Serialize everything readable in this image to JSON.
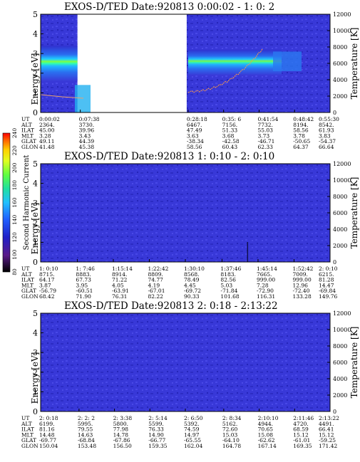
{
  "chart_data": [
    {
      "type": "heatmap",
      "title": "EXOS-D/TED   Date:920813  0:00:02 - 1: 0: 2",
      "ylabel": "Energy [eV]",
      "y2label": "Temperature [K]",
      "ylim": [
        0,
        5
      ],
      "y2lim": [
        0,
        12000
      ],
      "yticks": [
        "0",
        "1",
        "2",
        "3",
        "4",
        "5"
      ],
      "y2ticks": [
        "0",
        "2000",
        "4000",
        "6000",
        "8000",
        "10000",
        "12000"
      ],
      "gap": [
        "0:07:38",
        "0:28:18"
      ],
      "columns": [
        "0:00:02",
        "0:07:38",
        "0:28:18",
        "0:35: 6",
        "0:41:54",
        "0:48:42",
        "0:55:30"
      ],
      "rows": [
        {
          "label": "UT",
          "values": [
            "0:00:02",
            "0:07:38",
            "0:28:18",
            "0:35: 6",
            "0:41:54",
            "0:48:42",
            "0:55:30"
          ]
        },
        {
          "label": "ALT",
          "values": [
            "2364.",
            "3730.",
            "6467.",
            "7156.",
            "7732.",
            "8194.",
            "8542."
          ]
        },
        {
          "label": "ILAT",
          "values": [
            "45.00",
            "39.96",
            "47.49",
            "51.33",
            "55.03",
            "58.56",
            "61.93"
          ]
        },
        {
          "label": "MLT",
          "values": [
            "3.28",
            "3.43",
            "3.63",
            "3.68",
            "3.73",
            "3.78",
            "3.83"
          ]
        },
        {
          "label": "GLAT",
          "values": [
            "49.11",
            "44.39",
            "-38.34",
            "-42.58",
            "-46.71",
            "-50.65",
            "-54.37"
          ]
        },
        {
          "label": "GLON",
          "values": [
            "41.48",
            "45.38",
            "58.56",
            "60.43",
            "62.33",
            "64.37",
            "66.64"
          ]
        }
      ]
    },
    {
      "type": "heatmap",
      "title": "EXOS-D/TED   Date:920813  1: 0:10 - 2: 0:10",
      "ylabel": "Energy [eV]",
      "y2label": "Temperature [K]",
      "ylim": [
        0,
        5
      ],
      "y2lim": [
        0,
        12000
      ],
      "yticks": [
        "0",
        "1",
        "2",
        "3",
        "4",
        "5"
      ],
      "y2ticks": [
        "0",
        "2000",
        "4000",
        "6000",
        "8000",
        "10000",
        "12000"
      ],
      "columns": [
        "1: 0:10",
        "1: 7:46",
        "1:15:14",
        "1:22:42",
        "1:30:10",
        "1:37:46",
        "1:45:14",
        "1:52:42",
        "2: 0:10"
      ],
      "rows": [
        {
          "label": "UT",
          "values": [
            "1: 0:10",
            "1: 7:46",
            "1:15:14",
            "1:22:42",
            "1:30:10",
            "1:37:46",
            "1:45:14",
            "1:52:42",
            "2: 0:10"
          ]
        },
        {
          "label": "ALT",
          "values": [
            "8715.",
            "8883.",
            "8914.",
            "8809.",
            "8568.",
            "8183.",
            "7665.",
            "7009.",
            "6215."
          ]
        },
        {
          "label": "ILAT",
          "values": [
            "64.17",
            "67.73",
            "71.22",
            "74.77",
            "78.49",
            "82.56",
            "999.00",
            "999.00",
            "81.28"
          ]
        },
        {
          "label": "MLT",
          "values": [
            "3.87",
            "3.95",
            "4.05",
            "4.19",
            "4.45",
            "5.03",
            "7.28",
            "12.96",
            "14.47"
          ]
        },
        {
          "label": "GLAT",
          "values": [
            "-56.79",
            "-60.51",
            "-63.91",
            "-67.01",
            "-69.72",
            "-71.84",
            "-72.90",
            "-72.40",
            "-69.84"
          ]
        },
        {
          "label": "GLON",
          "values": [
            "68.42",
            "71.90",
            "76.31",
            "82.22",
            "90.33",
            "101.68",
            "116.31",
            "133.28",
            "149.76"
          ]
        }
      ]
    },
    {
      "type": "heatmap",
      "title": "EXOS-D/TED   Date:920813  2: 0:18 - 2:13:22",
      "ylabel": "Energy [eV]",
      "y2label": "Temperature [K]",
      "ylim": [
        0,
        5
      ],
      "y2lim": [
        0,
        12000
      ],
      "yticks": [
        "0",
        "1",
        "2",
        "3",
        "4",
        "5"
      ],
      "y2ticks": [
        "0",
        "2000",
        "4000",
        "6000",
        "8000",
        "10000",
        "12000"
      ],
      "columns": [
        "2: 0:18",
        "2: 2: 2",
        "2: 3:38",
        "2: 5:14",
        "2: 6:50",
        "2: 8:34",
        "2:10:10",
        "2:11:46",
        "2:13:22"
      ],
      "rows": [
        {
          "label": "UT",
          "values": [
            "2: 0:18",
            "2: 2: 2",
            "2: 3:38",
            "2: 5:14",
            "2: 6:50",
            "2: 8:34",
            "2:10:10",
            "2:11:46",
            "2:13:22"
          ]
        },
        {
          "label": "ALT",
          "values": [
            "6199.",
            "5995.",
            "5800.",
            "5599.",
            "5392.",
            "5162.",
            "4944.",
            "4720.",
            "4491."
          ]
        },
        {
          "label": "ILAT",
          "values": [
            "81.16",
            "79.55",
            "77.98",
            "76.33",
            "74.59",
            "72.60",
            "70.65",
            "68.59",
            "66.41"
          ]
        },
        {
          "label": "MLT",
          "values": [
            "14.48",
            "14.63",
            "14.78",
            "14.90",
            "14.97",
            "15.03",
            "15.08",
            "15.12",
            "15.12"
          ]
        },
        {
          "label": "GLAT",
          "values": [
            "-69.77",
            "-68.84",
            "-67.86",
            "-66.77",
            "-65.55",
            "-64.10",
            "-62.62",
            "-61.01",
            "-59.25"
          ]
        },
        {
          "label": "GLON",
          "values": [
            "150.04",
            "153.48",
            "156.50",
            "159.35",
            "162.04",
            "164.78",
            "167.14",
            "169.35",
            "171.42"
          ]
        }
      ]
    }
  ],
  "colorbar": {
    "label": "Second Harmonic Current",
    "ticks": [
      "80",
      "100",
      "120",
      "140",
      "160",
      "180",
      "200",
      "220",
      "240"
    ],
    "range": [
      80,
      240
    ],
    "colors": [
      "#000000",
      "#5a1a8a",
      "#2020c8",
      "#2060ff",
      "#20c0ff",
      "#20e0a0",
      "#60ff40",
      "#e0ff20",
      "#ffd000",
      "#ff6000",
      "#ff0000"
    ]
  }
}
